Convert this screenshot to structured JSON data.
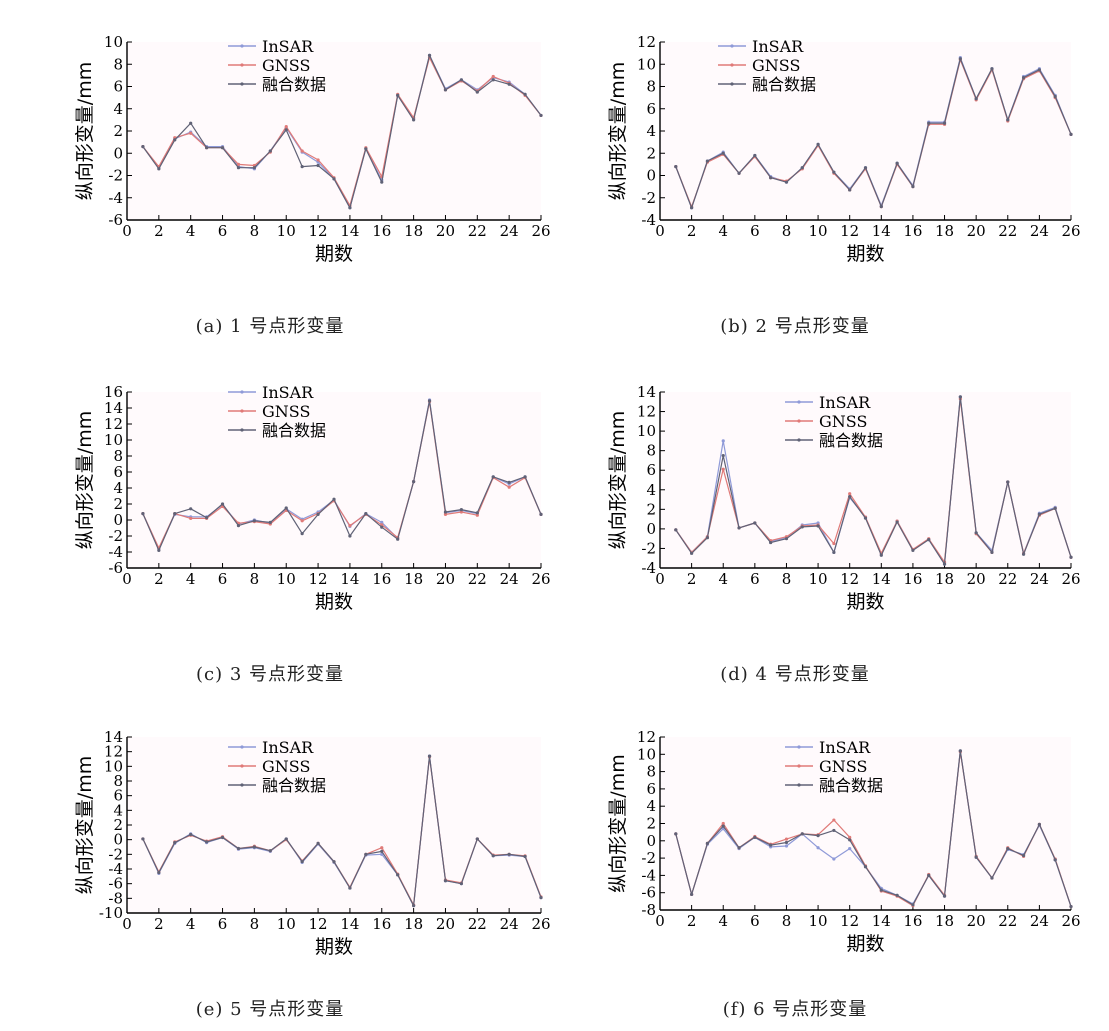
{
  "colors": {
    "insar": "#8f9ad8",
    "gnss": "#e07a78",
    "fusion": "#606276",
    "background": "#fffafc"
  },
  "chart_data": [
    {
      "type": "line",
      "caption": "(a) 1 号点形变量",
      "xlabel": "期数",
      "ylabel": "纵向形变量/mm",
      "xlim": [
        0,
        26
      ],
      "ylim": [
        -6,
        10
      ],
      "xticks": [
        0,
        2,
        4,
        6,
        8,
        10,
        12,
        14,
        16,
        18,
        20,
        22,
        24,
        26
      ],
      "yticks": [
        -6,
        -4,
        -2,
        0,
        2,
        4,
        6,
        8,
        10
      ],
      "legend_position": "top-left",
      "x": [
        1,
        2,
        3,
        4,
        5,
        6,
        7,
        8,
        9,
        10,
        11,
        12,
        13,
        14,
        15,
        16,
        17,
        18,
        19,
        20,
        21,
        22,
        23,
        24,
        25,
        26
      ],
      "series": [
        {
          "name": "InSAR",
          "values": [
            0.6,
            -1.3,
            1.3,
            1.9,
            0.6,
            0.6,
            -1.2,
            -1.4,
            0.2,
            2.3,
            0.1,
            -0.8,
            -2.3,
            -4.9,
            0.4,
            -2.4,
            5.2,
            3.1,
            8.8,
            5.8,
            6.6,
            5.7,
            6.8,
            6.4,
            5.3,
            3.4
          ]
        },
        {
          "name": "GNSS",
          "values": [
            0.6,
            -1.2,
            1.4,
            1.8,
            0.5,
            0.5,
            -1.0,
            -1.1,
            0.1,
            2.4,
            0.2,
            -0.6,
            -2.2,
            -4.7,
            0.5,
            -2.1,
            5.3,
            3.2,
            8.6,
            5.7,
            6.5,
            5.6,
            6.9,
            6.3,
            5.2,
            3.4
          ]
        },
        {
          "name": "融合数据",
          "values": [
            0.6,
            -1.4,
            1.2,
            2.7,
            0.5,
            0.5,
            -1.3,
            -1.3,
            0.2,
            2.1,
            -1.2,
            -1.1,
            -2.3,
            -4.9,
            0.4,
            -2.6,
            5.2,
            3.0,
            8.8,
            5.7,
            6.6,
            5.5,
            6.6,
            6.2,
            5.3,
            3.4
          ]
        }
      ]
    },
    {
      "type": "line",
      "caption": "(b) 2 号点形变量",
      "xlabel": "期数",
      "ylabel": "纵向形变量/mm",
      "xlim": [
        0,
        26
      ],
      "ylim": [
        -4,
        12
      ],
      "xticks": [
        0,
        2,
        4,
        6,
        8,
        10,
        12,
        14,
        16,
        18,
        20,
        22,
        24,
        26
      ],
      "yticks": [
        -4,
        -2,
        0,
        2,
        4,
        6,
        8,
        10,
        12
      ],
      "legend_position": "top-left",
      "x": [
        1,
        2,
        3,
        4,
        5,
        6,
        7,
        8,
        9,
        10,
        11,
        12,
        13,
        14,
        15,
        16,
        17,
        18,
        19,
        20,
        21,
        22,
        23,
        24,
        25,
        26
      ],
      "series": [
        {
          "name": "InSAR",
          "values": [
            0.8,
            -2.9,
            1.3,
            2.1,
            0.2,
            1.8,
            -0.1,
            -0.6,
            0.7,
            2.8,
            0.3,
            -1.2,
            0.7,
            -2.7,
            1.1,
            -0.9,
            4.8,
            4.8,
            10.6,
            6.9,
            9.6,
            5.0,
            8.9,
            9.6,
            7.2,
            3.7
          ]
        },
        {
          "name": "GNSS",
          "values": [
            0.8,
            -2.8,
            1.2,
            1.9,
            0.2,
            1.7,
            -0.2,
            -0.5,
            0.6,
            2.7,
            0.2,
            -1.3,
            0.6,
            -2.8,
            1.0,
            -1.0,
            4.6,
            4.6,
            10.4,
            6.8,
            9.5,
            4.9,
            8.7,
            9.4,
            7.0,
            3.7
          ]
        },
        {
          "name": "融合数据",
          "values": [
            0.8,
            -2.9,
            1.3,
            2.0,
            0.2,
            1.8,
            -0.2,
            -0.6,
            0.7,
            2.8,
            0.3,
            -1.3,
            0.7,
            -2.8,
            1.1,
            -1.0,
            4.7,
            4.7,
            10.5,
            6.9,
            9.6,
            5.0,
            8.8,
            9.5,
            7.1,
            3.7
          ]
        }
      ]
    },
    {
      "type": "line",
      "caption": "(c) 3 号点形变量",
      "xlabel": "期数",
      "ylabel": "纵向形变量/mm",
      "xlim": [
        0,
        26
      ],
      "ylim": [
        -6,
        16
      ],
      "xticks": [
        0,
        2,
        4,
        6,
        8,
        10,
        12,
        14,
        16,
        18,
        20,
        22,
        24,
        26
      ],
      "yticks": [
        -6,
        -4,
        -2,
        0,
        2,
        4,
        6,
        8,
        10,
        12,
        14,
        16
      ],
      "legend_position": "top-left",
      "x": [
        1,
        2,
        3,
        4,
        5,
        6,
        7,
        8,
        9,
        10,
        11,
        12,
        13,
        14,
        15,
        16,
        17,
        18,
        19,
        20,
        21,
        22,
        23,
        24,
        25,
        26
      ],
      "series": [
        {
          "name": "InSAR",
          "values": [
            0.8,
            -3.6,
            0.7,
            0.4,
            0.4,
            1.9,
            -0.5,
            0.0,
            -0.4,
            1.4,
            0.1,
            1.0,
            2.5,
            -0.8,
            0.8,
            -0.3,
            -2.3,
            4.8,
            15.0,
            0.9,
            1.2,
            0.8,
            5.4,
            4.5,
            5.4,
            0.7
          ]
        },
        {
          "name": "GNSS",
          "values": [
            0.8,
            -3.5,
            0.8,
            0.2,
            0.2,
            1.7,
            -0.4,
            -0.2,
            -0.5,
            1.2,
            -0.1,
            0.8,
            2.4,
            -0.7,
            0.7,
            -0.6,
            -2.2,
            4.8,
            14.8,
            0.7,
            1.0,
            0.6,
            5.3,
            4.1,
            5.3,
            0.7
          ]
        },
        {
          "name": "融合数据",
          "values": [
            0.8,
            -3.8,
            0.8,
            1.4,
            0.3,
            2.0,
            -0.7,
            -0.1,
            -0.3,
            1.5,
            -1.7,
            0.7,
            2.6,
            -2.0,
            0.8,
            -0.9,
            -2.4,
            4.8,
            14.9,
            1.0,
            1.3,
            0.9,
            5.4,
            4.7,
            5.4,
            0.7
          ]
        }
      ]
    },
    {
      "type": "line",
      "caption": "(d) 4 号点形变量",
      "xlabel": "期数",
      "ylabel": "纵向形变量/mm",
      "xlim": [
        0,
        26
      ],
      "ylim": [
        -4,
        14
      ],
      "xticks": [
        0,
        2,
        4,
        6,
        8,
        10,
        12,
        14,
        16,
        18,
        20,
        22,
        24,
        26
      ],
      "yticks": [
        -4,
        -2,
        0,
        2,
        4,
        6,
        8,
        10,
        12,
        14
      ],
      "legend_position": "top-center",
      "x": [
        1,
        2,
        3,
        4,
        5,
        6,
        7,
        8,
        9,
        10,
        11,
        12,
        13,
        14,
        15,
        16,
        17,
        18,
        19,
        20,
        21,
        22,
        23,
        24,
        25,
        26
      ],
      "series": [
        {
          "name": "InSAR",
          "values": [
            -0.1,
            -2.4,
            -0.8,
            9.0,
            0.1,
            0.6,
            -1.3,
            -0.9,
            0.4,
            0.6,
            -2.4,
            3.2,
            1.2,
            -2.6,
            0.8,
            -2.1,
            -1.1,
            -3.6,
            13.5,
            -0.4,
            -2.2,
            4.8,
            -2.5,
            1.6,
            2.2,
            -2.9
          ]
        },
        {
          "name": "GNSS",
          "values": [
            -0.1,
            -2.4,
            -0.8,
            6.1,
            0.1,
            0.6,
            -1.2,
            -0.8,
            0.3,
            0.4,
            -1.5,
            3.6,
            1.2,
            -2.5,
            0.8,
            -2.1,
            -1.0,
            -3.4,
            13.3,
            -0.5,
            -2.4,
            4.8,
            -2.5,
            1.4,
            2.1,
            -2.9
          ]
        },
        {
          "name": "融合数据",
          "values": [
            -0.1,
            -2.5,
            -0.9,
            7.5,
            0.1,
            0.6,
            -1.4,
            -1.0,
            0.2,
            0.3,
            -2.4,
            3.3,
            1.1,
            -2.7,
            0.7,
            -2.2,
            -1.1,
            -3.6,
            13.5,
            -0.4,
            -2.4,
            4.8,
            -2.6,
            1.5,
            2.1,
            -2.9
          ]
        }
      ]
    },
    {
      "type": "line",
      "caption": "(e) 5 号点形变量",
      "xlabel": "期数",
      "ylabel": "纵向形变量/mm",
      "xlim": [
        0,
        26
      ],
      "ylim": [
        -10,
        14
      ],
      "xticks": [
        0,
        2,
        4,
        6,
        8,
        10,
        12,
        14,
        16,
        18,
        20,
        22,
        24,
        26
      ],
      "yticks": [
        -10,
        -8,
        -6,
        -4,
        -2,
        0,
        2,
        4,
        6,
        8,
        10,
        12,
        14
      ],
      "legend_position": "top-left",
      "x": [
        1,
        2,
        3,
        4,
        5,
        6,
        7,
        8,
        9,
        10,
        11,
        12,
        13,
        14,
        15,
        16,
        17,
        18,
        19,
        20,
        21,
        22,
        23,
        24,
        25,
        26
      ],
      "series": [
        {
          "name": "InSAR",
          "values": [
            0.1,
            -4.6,
            -0.5,
            0.8,
            -0.4,
            0.3,
            -1.3,
            -1.1,
            -1.6,
            0.1,
            -3.1,
            -0.6,
            -3.1,
            -6.6,
            -2.1,
            -2.0,
            -4.8,
            -9.0,
            11.4,
            -5.6,
            -6.0,
            0.1,
            -2.2,
            -2.1,
            -2.3,
            -7.9
          ]
        },
        {
          "name": "GNSS",
          "values": [
            0.1,
            -4.4,
            -0.3,
            0.6,
            -0.2,
            0.4,
            -1.2,
            -0.9,
            -1.5,
            0.0,
            -2.9,
            -0.5,
            -3.0,
            -6.5,
            -2.0,
            -1.1,
            -4.7,
            -8.9,
            11.3,
            -5.5,
            -5.9,
            0.1,
            -2.1,
            -2.0,
            -2.2,
            -7.8
          ]
        },
        {
          "name": "融合数据",
          "values": [
            0.1,
            -4.5,
            -0.4,
            0.7,
            -0.3,
            0.3,
            -1.2,
            -1.0,
            -1.5,
            0.1,
            -3.0,
            -0.5,
            -3.0,
            -6.6,
            -2.0,
            -1.6,
            -4.8,
            -9.0,
            11.4,
            -5.6,
            -6.0,
            0.1,
            -2.2,
            -2.0,
            -2.3,
            -7.9
          ]
        }
      ]
    },
    {
      "type": "line",
      "caption": "(f) 6 号点形变量",
      "xlabel": "期数",
      "ylabel": "纵向形变量/mm",
      "xlim": [
        0,
        26
      ],
      "ylim": [
        -8,
        12
      ],
      "xticks": [
        0,
        2,
        4,
        6,
        8,
        10,
        12,
        14,
        16,
        18,
        20,
        22,
        24,
        26
      ],
      "yticks": [
        -8,
        -6,
        -4,
        -2,
        0,
        2,
        4,
        6,
        8,
        10,
        12
      ],
      "legend_position": "top-center",
      "x": [
        1,
        2,
        3,
        4,
        5,
        6,
        7,
        8,
        9,
        10,
        11,
        12,
        13,
        14,
        15,
        16,
        17,
        18,
        19,
        20,
        21,
        22,
        23,
        24,
        25,
        26
      ],
      "series": [
        {
          "name": "InSAR",
          "values": [
            0.8,
            -6.2,
            -0.4,
            1.4,
            -0.9,
            0.4,
            -0.7,
            -0.6,
            0.8,
            -0.8,
            -2.1,
            -0.9,
            -3.0,
            -5.5,
            -6.3,
            -7.3,
            -4.0,
            -6.4,
            10.4,
            -1.9,
            -4.3,
            -1.0,
            -1.6,
            1.8,
            -2.2,
            -7.6
          ]
        },
        {
          "name": "GNSS",
          "values": [
            0.8,
            -6.2,
            -0.3,
            2.0,
            -0.8,
            0.5,
            -0.4,
            0.2,
            0.8,
            0.7,
            2.4,
            0.4,
            -2.9,
            -5.8,
            -6.4,
            -7.5,
            -3.9,
            -6.3,
            10.3,
            -1.8,
            -4.3,
            -0.8,
            -1.8,
            1.9,
            -2.1,
            -7.6
          ]
        },
        {
          "name": "融合数据",
          "values": [
            0.8,
            -6.2,
            -0.3,
            1.7,
            -0.8,
            0.4,
            -0.5,
            -0.2,
            0.8,
            0.6,
            1.2,
            0.1,
            -3.0,
            -5.7,
            -6.3,
            -7.4,
            -4.0,
            -6.4,
            10.4,
            -1.9,
            -4.3,
            -0.9,
            -1.7,
            1.9,
            -2.2,
            -7.6
          ]
        }
      ]
    }
  ]
}
